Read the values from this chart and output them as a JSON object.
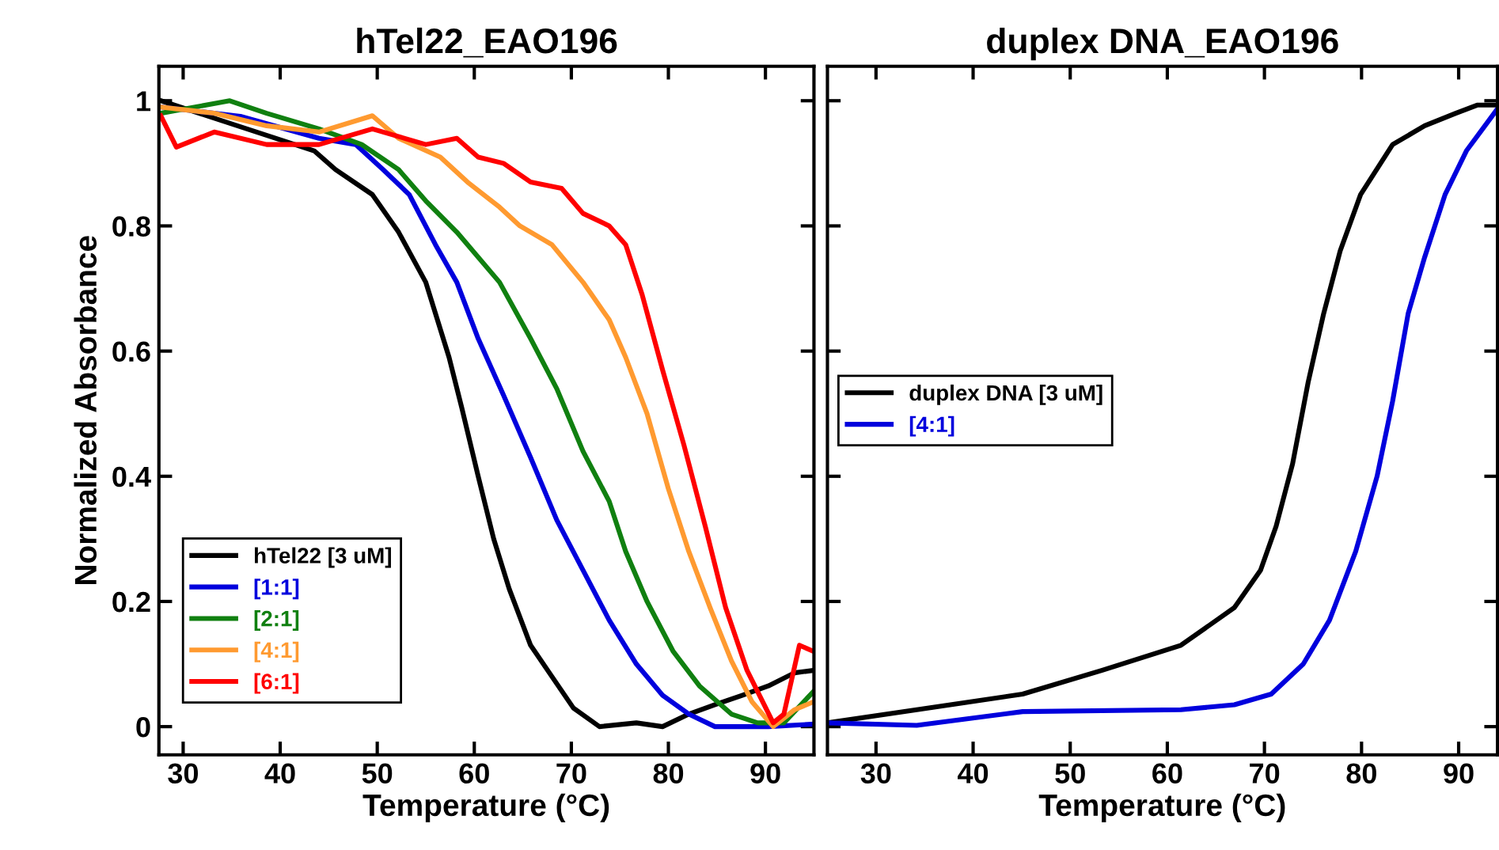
{
  "chart_data": [
    {
      "type": "line",
      "title": "hTel22_EAO196",
      "xlabel": "Temperature (°C)",
      "ylabel": "Normalized Absorbance",
      "xlim": [
        27.5,
        95
      ],
      "ylim": [
        -0.045,
        1.055
      ],
      "xticks": [
        30,
        40,
        50,
        60,
        70,
        80,
        90
      ],
      "yticks": [
        0,
        {
          "value": 0.2,
          "label": "0.2"
        },
        {
          "value": 0.4,
          "label": "0.4"
        },
        {
          "value": 0.6,
          "label": "0.6"
        },
        {
          "value": 0.8,
          "label": "0.8"
        },
        1
      ],
      "legend": "bottom left",
      "grid": false,
      "series": [
        {
          "name": "hTel22 [3 uM]",
          "color": "#000000",
          "x": [
            27.7,
            43.5,
            45.7,
            49.5,
            52.2,
            55,
            57.4,
            58.7,
            60.4,
            62,
            63.6,
            65.8,
            68,
            70.2,
            72.9,
            76.7,
            79.4,
            82.1,
            84.8,
            87.6,
            90.3,
            93,
            95
          ],
          "values": [
            1.0,
            0.92,
            0.89,
            0.85,
            0.79,
            0.71,
            0.59,
            0.51,
            0.4,
            0.3,
            0.22,
            0.13,
            0.08,
            0.03,
            0.0,
            0.006,
            0.0,
            0.02,
            0.035,
            0.05,
            0.065,
            0.086,
            0.09
          ]
        },
        {
          "name": "[1:1]",
          "color": "#0000dd",
          "x": [
            27.7,
            35.9,
            44,
            47.8,
            50.6,
            53.3,
            56,
            58.2,
            60.4,
            63,
            65.8,
            68.5,
            71.2,
            73.9,
            76.7,
            79.4,
            82.1,
            84.8,
            90.3,
            95
          ],
          "values": [
            0.99,
            0.975,
            0.94,
            0.93,
            0.89,
            0.85,
            0.77,
            0.71,
            0.62,
            0.53,
            0.43,
            0.33,
            0.25,
            0.17,
            0.1,
            0.05,
            0.02,
            0.0,
            0.0,
            0.004
          ]
        },
        {
          "name": "[2:1]",
          "color": "#108010",
          "x": [
            27.7,
            34.8,
            38.6,
            44,
            48.4,
            52.2,
            55,
            58.2,
            62.6,
            65.8,
            68.5,
            71.2,
            73.9,
            75.6,
            77.8,
            80.5,
            83.2,
            86.5,
            89.2,
            91.9,
            95
          ],
          "values": [
            0.98,
            1.0,
            0.98,
            0.955,
            0.93,
            0.89,
            0.84,
            0.79,
            0.71,
            0.62,
            0.54,
            0.44,
            0.36,
            0.28,
            0.2,
            0.12,
            0.065,
            0.02,
            0.006,
            0.006,
            0.057
          ]
        },
        {
          "name": "[4:1]",
          "color": "#ff9a30",
          "x": [
            27.7,
            33.2,
            38.6,
            44,
            49.5,
            52.2,
            56.5,
            59.3,
            62.6,
            64.7,
            68,
            71.2,
            73.9,
            75.6,
            77.8,
            80,
            82.1,
            84.3,
            86.5,
            88.6,
            90.8,
            93,
            95
          ],
          "values": [
            0.99,
            0.98,
            0.96,
            0.95,
            0.976,
            0.94,
            0.91,
            0.87,
            0.83,
            0.8,
            0.77,
            0.71,
            0.65,
            0.59,
            0.5,
            0.38,
            0.28,
            0.19,
            0.105,
            0.04,
            0.0,
            0.027,
            0.04
          ]
        },
        {
          "name": "[6:1]",
          "color": "#ff0000",
          "x": [
            27.7,
            29.3,
            33.2,
            38.6,
            44,
            49.5,
            55,
            58.2,
            60.4,
            63,
            65.8,
            69,
            71.2,
            73.9,
            75.6,
            77.3,
            79.4,
            81.6,
            83.8,
            85.9,
            88.1,
            90.8,
            91.9,
            93.5,
            95
          ],
          "values": [
            0.976,
            0.926,
            0.95,
            0.93,
            0.93,
            0.955,
            0.93,
            0.94,
            0.91,
            0.9,
            0.87,
            0.86,
            0.82,
            0.8,
            0.77,
            0.69,
            0.57,
            0.45,
            0.32,
            0.19,
            0.09,
            0.006,
            0.02,
            0.13,
            0.12
          ]
        }
      ]
    },
    {
      "type": "line",
      "title": "duplex DNA_EAO196",
      "xlabel": "Temperature (°C)",
      "xlim": [
        25,
        94
      ],
      "ylim": [
        -0.045,
        1.055
      ],
      "xticks": [
        30,
        40,
        50,
        60,
        70,
        80,
        90
      ],
      "yticks": [
        {
          "value": 0,
          "label": null
        },
        {
          "value": 0.2,
          "label": null
        },
        {
          "value": 0.4,
          "label": null
        },
        {
          "value": 0.6,
          "label": null
        },
        {
          "value": 0.8,
          "label": null
        },
        {
          "value": 1,
          "label": null
        }
      ],
      "tick_labels": "x",
      "legend": "left",
      "grid": false,
      "series": [
        {
          "name": "duplex DNA [3 uM]",
          "color": "#000000",
          "x": [
            25,
            34.2,
            45.1,
            53.3,
            61.4,
            66.9,
            69.6,
            71.2,
            72.9,
            74.5,
            76.1,
            77.8,
            79.9,
            83.2,
            86.5,
            89.7,
            91.9,
            93.9
          ],
          "values": [
            0.006,
            0.027,
            0.052,
            0.09,
            0.13,
            0.19,
            0.25,
            0.32,
            0.42,
            0.55,
            0.66,
            0.76,
            0.85,
            0.93,
            0.96,
            0.98,
            0.993,
            0.993
          ]
        },
        {
          "name": "[4:1]",
          "color": "#0000dd",
          "x": [
            25,
            34.2,
            45.1,
            61.4,
            66.9,
            70.7,
            74,
            76.7,
            79.4,
            81.6,
            83.2,
            84.8,
            86.5,
            88.6,
            90.8,
            93.9
          ],
          "values": [
            0.006,
            0.002,
            0.024,
            0.027,
            0.035,
            0.052,
            0.1,
            0.17,
            0.28,
            0.4,
            0.52,
            0.66,
            0.75,
            0.85,
            0.92,
            0.985
          ]
        }
      ]
    }
  ]
}
